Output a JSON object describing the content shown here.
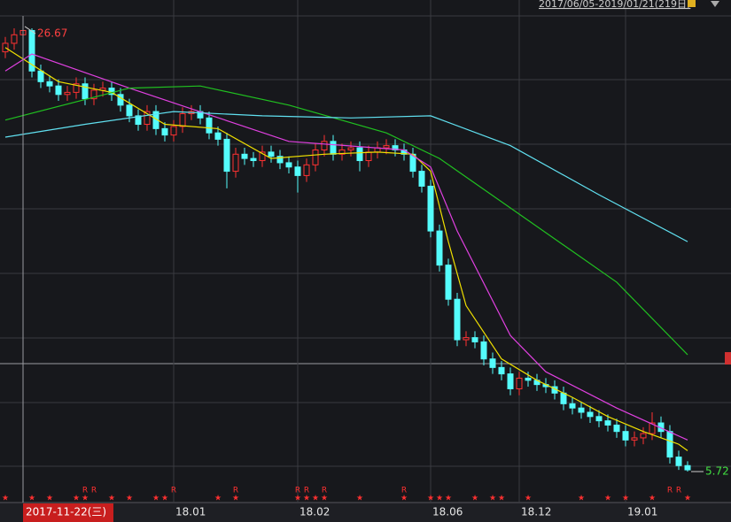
{
  "chart_data": {
    "type": "candlestick",
    "range_label": "2017/06/05-2019/01/21(219日)",
    "categories": [
      null,
      null,
      null,
      null,
      null,
      null,
      null,
      null,
      null,
      null,
      null,
      null,
      null,
      null,
      null,
      null,
      null,
      null,
      null,
      "18.01",
      null,
      null,
      null,
      null,
      null,
      null,
      null,
      null,
      null,
      null,
      null,
      null,
      null,
      "18.02",
      null,
      null,
      null,
      null,
      null,
      null,
      null,
      null,
      null,
      null,
      null,
      null,
      null,
      null,
      "18.06",
      null,
      null,
      null,
      null,
      null,
      null,
      null,
      null,
      null,
      "18.12",
      null,
      null,
      null,
      null,
      null,
      null,
      null,
      null,
      null,
      null,
      null,
      "19.01",
      null,
      null,
      null,
      null,
      null,
      null,
      null
    ],
    "open": [
      25.4,
      25.8,
      26.2,
      26.4,
      24.5,
      24.0,
      23.8,
      23.4,
      23.5,
      23.9,
      23.2,
      23.6,
      23.7,
      23.4,
      22.9,
      22.4,
      22.0,
      22.6,
      21.8,
      21.5,
      21.9,
      22.5,
      22.6,
      22.3,
      21.6,
      21.3,
      19.8,
      20.6,
      20.4,
      20.3,
      20.7,
      20.5,
      20.2,
      20.0,
      19.6,
      20.1,
      20.8,
      21.2,
      20.6,
      20.8,
      20.9,
      20.3,
      20.7,
      20.9,
      21.0,
      20.8,
      20.6,
      19.8,
      19.1,
      17.0,
      15.4,
      13.8,
      11.9,
      12.0,
      11.8,
      11.0,
      10.6,
      10.3,
      9.6,
      10.1,
      10.0,
      9.8,
      9.7,
      9.4,
      8.9,
      8.7,
      8.5,
      8.3,
      8.1,
      7.9,
      7.6,
      7.2,
      7.3,
      7.5,
      8.0,
      7.6,
      6.4,
      6.0
    ],
    "high": [
      26.1,
      26.5,
      26.67,
      26.5,
      24.8,
      24.3,
      24.1,
      23.8,
      24.2,
      24.2,
      23.9,
      24.0,
      24.0,
      23.7,
      23.2,
      22.7,
      22.9,
      22.9,
      22.1,
      22.2,
      22.8,
      22.9,
      22.9,
      22.6,
      21.9,
      21.6,
      20.9,
      20.9,
      20.7,
      21.0,
      21.0,
      20.8,
      20.5,
      20.3,
      20.4,
      21.1,
      21.5,
      21.5,
      21.1,
      21.2,
      21.2,
      21.0,
      21.2,
      21.3,
      21.3,
      21.1,
      20.9,
      20.1,
      19.4,
      17.3,
      15.7,
      14.1,
      12.3,
      12.3,
      12.1,
      11.3,
      10.9,
      10.6,
      10.4,
      10.4,
      10.3,
      10.1,
      10.0,
      9.7,
      9.2,
      9.0,
      8.8,
      8.6,
      8.4,
      8.2,
      7.9,
      7.6,
      7.8,
      8.5,
      8.3,
      7.9,
      6.7,
      6.2
    ],
    "low": [
      25.1,
      25.5,
      25.9,
      24.2,
      23.7,
      23.5,
      23.1,
      23.1,
      23.2,
      22.9,
      22.9,
      23.3,
      23.1,
      22.6,
      22.1,
      21.7,
      21.7,
      21.5,
      21.2,
      21.2,
      21.6,
      22.2,
      22.0,
      21.3,
      21.0,
      19.0,
      19.5,
      20.1,
      20.0,
      20.0,
      20.2,
      19.9,
      19.7,
      18.8,
      19.3,
      19.8,
      20.5,
      20.3,
      20.3,
      20.5,
      19.8,
      20.0,
      20.4,
      20.6,
      20.5,
      20.3,
      19.5,
      18.8,
      16.7,
      15.1,
      13.5,
      11.6,
      11.6,
      11.5,
      10.7,
      10.3,
      10.0,
      9.3,
      9.3,
      9.7,
      9.5,
      9.4,
      9.1,
      8.6,
      8.4,
      8.2,
      8.0,
      7.8,
      7.6,
      7.3,
      6.9,
      6.9,
      7.0,
      7.2,
      7.3,
      6.1,
      5.8,
      5.72
    ],
    "close": [
      25.8,
      26.2,
      26.4,
      24.5,
      24.0,
      23.8,
      23.4,
      23.5,
      23.9,
      23.2,
      23.6,
      23.7,
      23.4,
      22.9,
      22.4,
      22.0,
      22.6,
      21.8,
      21.5,
      21.9,
      22.5,
      22.6,
      22.3,
      21.6,
      21.3,
      19.8,
      20.6,
      20.4,
      20.3,
      20.7,
      20.5,
      20.2,
      20.0,
      19.6,
      20.1,
      20.8,
      21.2,
      20.6,
      20.8,
      20.9,
      20.3,
      20.7,
      20.9,
      21.0,
      20.8,
      20.6,
      19.8,
      19.1,
      17.0,
      15.4,
      13.8,
      11.9,
      12.0,
      11.8,
      11.0,
      10.6,
      10.3,
      9.6,
      10.1,
      10.0,
      9.8,
      9.7,
      9.4,
      8.9,
      8.7,
      8.5,
      8.3,
      8.1,
      7.9,
      7.6,
      7.2,
      7.3,
      7.5,
      8.0,
      7.6,
      6.4,
      6.0,
      5.8
    ],
    "up_color": "#ff3232",
    "down_color": "#54fcfc",
    "lines": [
      {
        "color": "#f0e000",
        "x": [
          0,
          6,
          12,
          18,
          24,
          30,
          36,
          42,
          46,
          48,
          50,
          52,
          56,
          60,
          64,
          68,
          72,
          76,
          77
        ],
        "values": [
          25.6,
          24.0,
          23.5,
          22.0,
          21.8,
          20.4,
          20.6,
          20.7,
          20.6,
          19.8,
          16.5,
          13.5,
          11.0,
          10.0,
          9.2,
          8.3,
          7.6,
          7.0,
          6.7
        ]
      },
      {
        "color": "#e040e0",
        "x": [
          0,
          3,
          14,
          32,
          45,
          48,
          51,
          57,
          61,
          69,
          77
        ],
        "values": [
          24.5,
          25.3,
          23.7,
          21.2,
          20.8,
          20.0,
          17.0,
          12.1,
          10.4,
          8.7,
          7.2
        ]
      },
      {
        "color": "#20c020",
        "x": [
          0,
          14,
          22,
          32,
          43,
          49,
          59,
          69,
          77
        ],
        "values": [
          22.2,
          23.7,
          23.8,
          22.9,
          21.6,
          20.4,
          17.5,
          14.6,
          11.2
        ]
      },
      {
        "color": "#60e0f0",
        "x": [
          0,
          9,
          19,
          29,
          39,
          48,
          57,
          67,
          77
        ],
        "values": [
          21.4,
          22.0,
          22.6,
          22.4,
          22.3,
          22.4,
          21.0,
          18.7,
          16.5
        ]
      }
    ],
    "ylim": [
      4.6,
      27.83
    ],
    "max_label": {
      "index": 2,
      "value": 26.67,
      "label": "26.67"
    },
    "min_label": {
      "index": 77,
      "value": 5.72,
      "label": "5.72"
    },
    "cursor": {
      "index": 2,
      "label": "2017-11-22(三)"
    },
    "events": [
      {
        "index": 0,
        "label": "★"
      },
      {
        "index": 3,
        "label": "★"
      },
      {
        "index": 5,
        "label": "★"
      },
      {
        "index": 8,
        "label": "★"
      },
      {
        "index": 9,
        "label": "★"
      },
      {
        "index": 9,
        "label": "R"
      },
      {
        "index": 10,
        "label": "R"
      },
      {
        "index": 12,
        "label": "★"
      },
      {
        "index": 14,
        "label": "★"
      },
      {
        "index": 17,
        "label": "★"
      },
      {
        "index": 18,
        "label": "★"
      },
      {
        "index": 19,
        "label": "R"
      },
      {
        "index": 24,
        "label": "★"
      },
      {
        "index": 26,
        "label": "★"
      },
      {
        "index": 26,
        "label": "R"
      },
      {
        "index": 33,
        "label": "★"
      },
      {
        "index": 33,
        "label": "R"
      },
      {
        "index": 34,
        "label": "★"
      },
      {
        "index": 34,
        "label": "R"
      },
      {
        "index": 35,
        "label": "★"
      },
      {
        "index": 36,
        "label": "★"
      },
      {
        "index": 36,
        "label": "R"
      },
      {
        "index": 40,
        "label": "★"
      },
      {
        "index": 45,
        "label": "★"
      },
      {
        "index": 45,
        "label": "R"
      },
      {
        "index": 48,
        "label": "★"
      },
      {
        "index": 49,
        "label": "★"
      },
      {
        "index": 50,
        "label": "★"
      },
      {
        "index": 53,
        "label": "★"
      },
      {
        "index": 55,
        "label": "★"
      },
      {
        "index": 56,
        "label": "★"
      },
      {
        "index": 59,
        "label": "★"
      },
      {
        "index": 65,
        "label": "★"
      },
      {
        "index": 68,
        "label": "★"
      },
      {
        "index": 70,
        "label": "★"
      },
      {
        "index": 73,
        "label": "★"
      },
      {
        "index": 75,
        "label": "R"
      },
      {
        "index": 76,
        "label": "R"
      },
      {
        "index": 77,
        "label": "★"
      }
    ]
  }
}
